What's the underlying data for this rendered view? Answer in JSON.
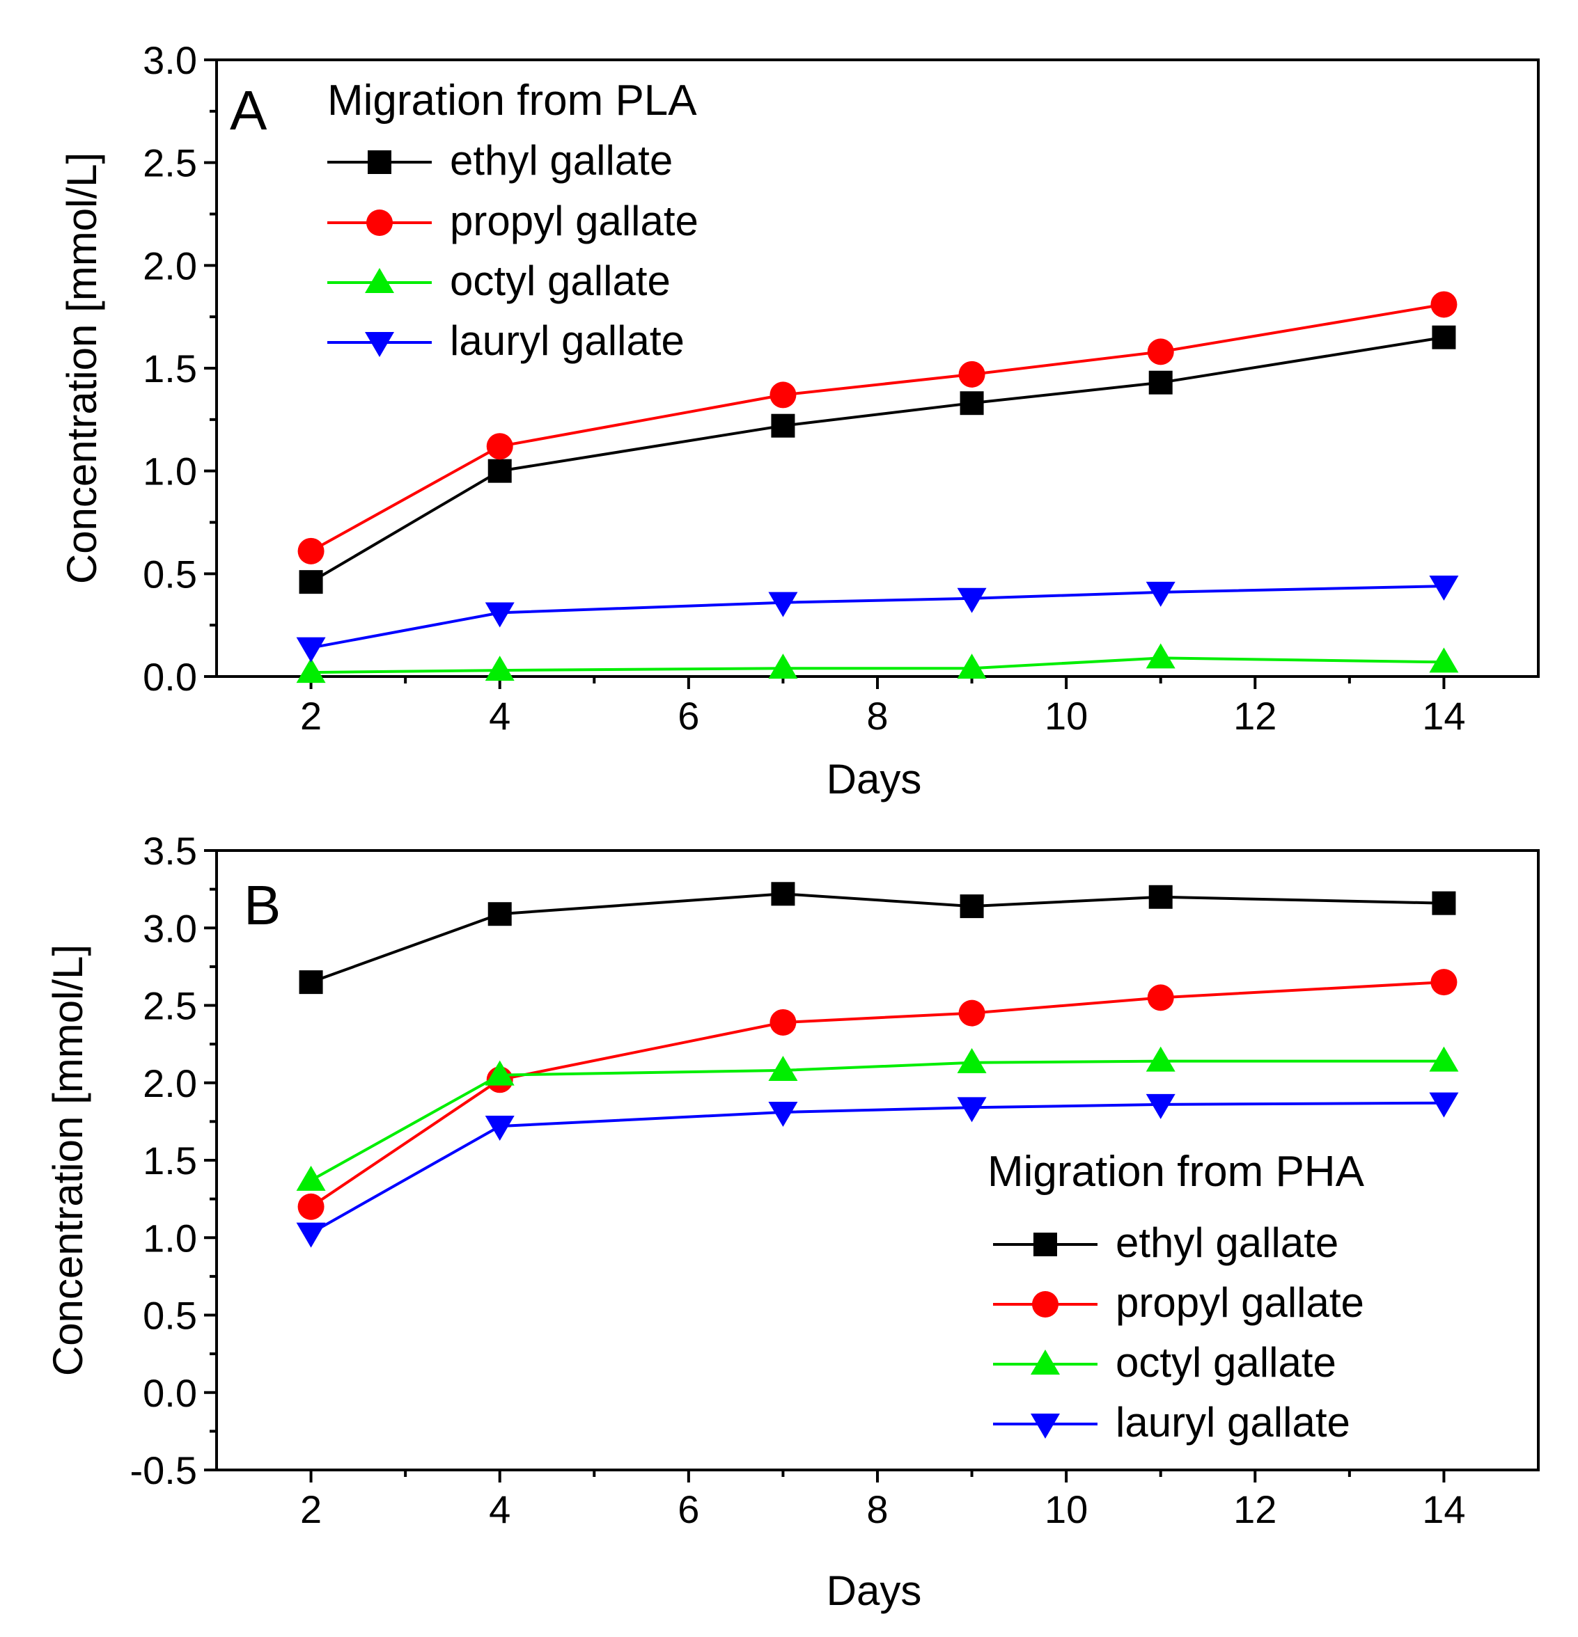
{
  "figure": {
    "colors": {
      "ethyl gallate": "#000000",
      "propyl gallate": "#ff0000",
      "octyl gallate": "#00ee00",
      "lauryl gallate": "#0000ff"
    },
    "markers": {
      "ethyl gallate": "square",
      "propyl gallate": "circle",
      "octyl gallate": "triangle-up",
      "lauryl gallate": "triangle-down"
    }
  },
  "chart_data": [
    {
      "type": "line",
      "panel_label": "A",
      "title": "Migration from PLA",
      "xlabel": "Days",
      "ylabel": "Concentration [mmol/L]",
      "xlim": [
        1,
        15
      ],
      "ylim": [
        0.0,
        3.0
      ],
      "xticks": [
        2,
        4,
        6,
        8,
        10,
        12,
        14
      ],
      "yticks": [
        0.0,
        0.5,
        1.0,
        1.5,
        2.0,
        2.5,
        3.0
      ],
      "ytick_labels": [
        "0.0",
        "0.5",
        "1.0",
        "1.5",
        "2.0",
        "2.5",
        "3.0"
      ],
      "legend_position": "top-left",
      "x": [
        2,
        4,
        7,
        9,
        11,
        14
      ],
      "series": [
        {
          "name": "ethyl gallate",
          "values": [
            0.46,
            1.0,
            1.22,
            1.33,
            1.43,
            1.65
          ]
        },
        {
          "name": "propyl gallate",
          "values": [
            0.61,
            1.12,
            1.37,
            1.47,
            1.58,
            1.81
          ]
        },
        {
          "name": "octyl gallate",
          "values": [
            0.02,
            0.03,
            0.04,
            0.04,
            0.09,
            0.07
          ]
        },
        {
          "name": "lauryl gallate",
          "values": [
            0.14,
            0.31,
            0.36,
            0.38,
            0.41,
            0.44
          ]
        }
      ]
    },
    {
      "type": "line",
      "panel_label": "B",
      "title": "Migration from PHA",
      "xlabel": "Days",
      "ylabel": "Concentration [mmol/L]",
      "xlim": [
        1,
        15
      ],
      "ylim": [
        -0.5,
        3.5
      ],
      "xticks": [
        2,
        4,
        6,
        8,
        10,
        12,
        14
      ],
      "yticks": [
        -0.5,
        0.0,
        0.5,
        1.0,
        1.5,
        2.0,
        2.5,
        3.0,
        3.5
      ],
      "ytick_labels": [
        "-0.5",
        "0.0",
        "0.5",
        "1.0",
        "1.5",
        "2.0",
        "2.5",
        "3.0",
        "3.5"
      ],
      "legend_position": "bottom-right",
      "x": [
        2,
        4,
        7,
        9,
        11,
        14
      ],
      "series": [
        {
          "name": "ethyl gallate",
          "values": [
            2.65,
            3.09,
            3.22,
            3.14,
            3.2,
            3.16
          ]
        },
        {
          "name": "propyl gallate",
          "values": [
            1.2,
            2.02,
            2.39,
            2.45,
            2.55,
            2.65
          ]
        },
        {
          "name": "octyl gallate",
          "values": [
            1.37,
            2.05,
            2.08,
            2.13,
            2.14,
            2.14
          ]
        },
        {
          "name": "lauryl gallate",
          "values": [
            1.03,
            1.72,
            1.81,
            1.84,
            1.86,
            1.87
          ]
        }
      ]
    }
  ]
}
